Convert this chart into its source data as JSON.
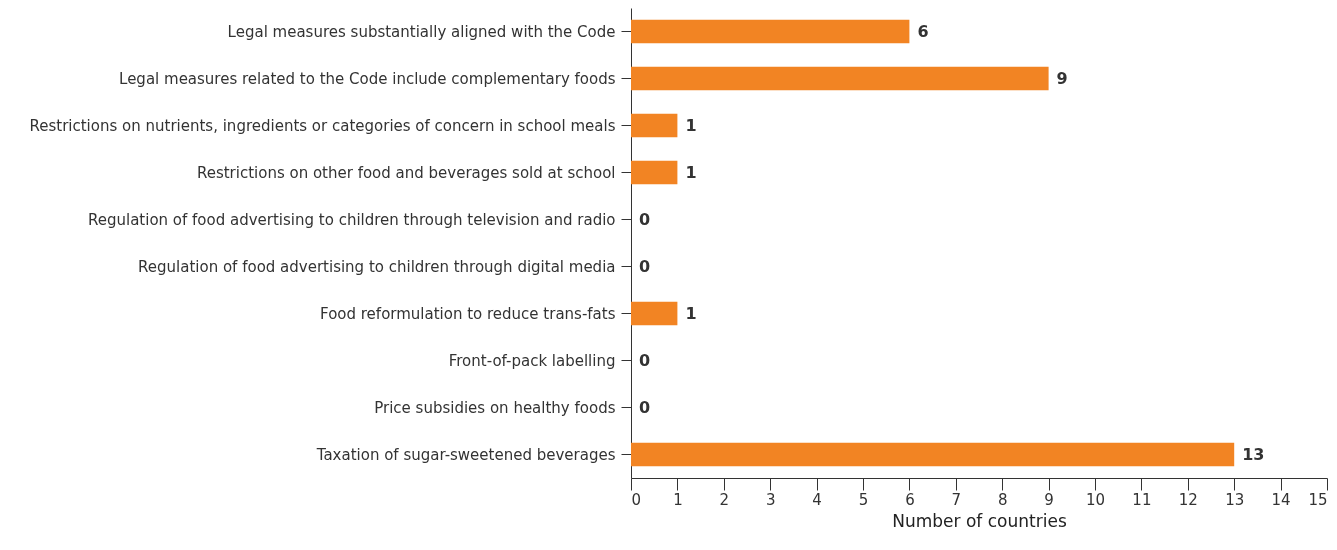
{
  "chart_data": {
    "type": "bar",
    "orientation": "horizontal",
    "xlabel": "Number of countries",
    "categories": [
      "Legal measures substantially aligned with the Code",
      "Legal measures related to the Code include complementary foods",
      "Restrictions on nutrients, ingredients or categories of concern in school meals",
      "Restrictions on other  food and beverages sold at school",
      "Regulation of food advertising to children through television and radio",
      "Regulation of food advertising to children through digital media",
      "Food reformulation to reduce trans-fats",
      "Front-of-pack labelling",
      "Price subsidies on healthy foods",
      "Taxation of sugar-sweetened beverages"
    ],
    "values": [
      6,
      9,
      1,
      1,
      0,
      0,
      1,
      0,
      0,
      13
    ],
    "color": "#f28423",
    "xlim": [
      0,
      15
    ],
    "xticks": [
      0,
      1,
      2,
      3,
      4,
      5,
      6,
      7,
      8,
      9,
      10,
      11,
      12,
      13,
      14,
      15
    ],
    "data_labels": true,
    "grid": false
  }
}
